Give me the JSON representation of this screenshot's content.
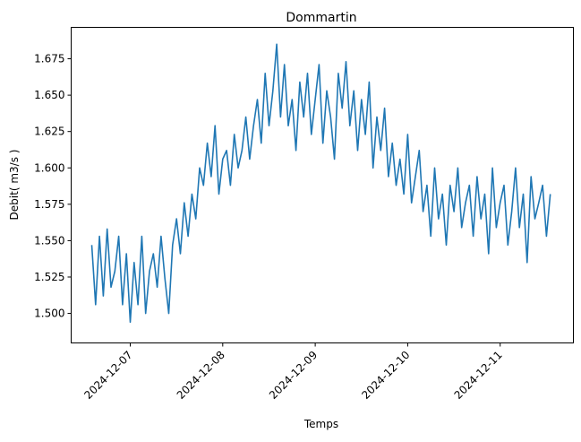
{
  "chart_data": {
    "type": "line",
    "title": "Dommartin",
    "xlabel": "Temps",
    "ylabel": "Debit( m3/s )",
    "ylim": [
      1.4797,
      1.6966
    ],
    "xlim": [
      "2024-12-06T08:40",
      "2024-12-11T19:00"
    ],
    "yticks": [
      "1.500",
      "1.525",
      "1.550",
      "1.575",
      "1.600",
      "1.625",
      "1.650",
      "1.675"
    ],
    "xticks": [
      "2024-12-07",
      "2024-12-08",
      "2024-12-09",
      "2024-12-10",
      "2024-12-11"
    ],
    "grid": false,
    "series": [
      {
        "name": "Debit",
        "color": "#1f77b4",
        "start": "2024-12-06T14:00",
        "interval_hours": 1,
        "values": [
          1.547,
          1.506,
          1.553,
          1.512,
          1.558,
          1.518,
          1.529,
          1.553,
          1.506,
          1.541,
          1.494,
          1.535,
          1.506,
          1.553,
          1.5,
          1.529,
          1.541,
          1.518,
          1.553,
          1.524,
          1.5,
          1.547,
          1.565,
          1.541,
          1.576,
          1.553,
          1.582,
          1.565,
          1.6,
          1.588,
          1.617,
          1.594,
          1.629,
          1.582,
          1.606,
          1.612,
          1.588,
          1.623,
          1.6,
          1.612,
          1.635,
          1.606,
          1.629,
          1.647,
          1.617,
          1.665,
          1.629,
          1.653,
          1.685,
          1.635,
          1.671,
          1.629,
          1.647,
          1.612,
          1.659,
          1.635,
          1.665,
          1.623,
          1.647,
          1.671,
          1.617,
          1.653,
          1.635,
          1.606,
          1.665,
          1.641,
          1.673,
          1.629,
          1.653,
          1.612,
          1.647,
          1.623,
          1.659,
          1.6,
          1.635,
          1.612,
          1.641,
          1.594,
          1.617,
          1.588,
          1.606,
          1.582,
          1.623,
          1.576,
          1.594,
          1.612,
          1.57,
          1.588,
          1.553,
          1.6,
          1.565,
          1.582,
          1.547,
          1.588,
          1.57,
          1.6,
          1.559,
          1.576,
          1.588,
          1.553,
          1.594,
          1.565,
          1.582,
          1.541,
          1.6,
          1.559,
          1.576,
          1.588,
          1.547,
          1.57,
          1.6,
          1.559,
          1.582,
          1.535,
          1.594,
          1.565,
          1.576,
          1.588,
          1.553,
          1.582
        ]
      }
    ]
  }
}
